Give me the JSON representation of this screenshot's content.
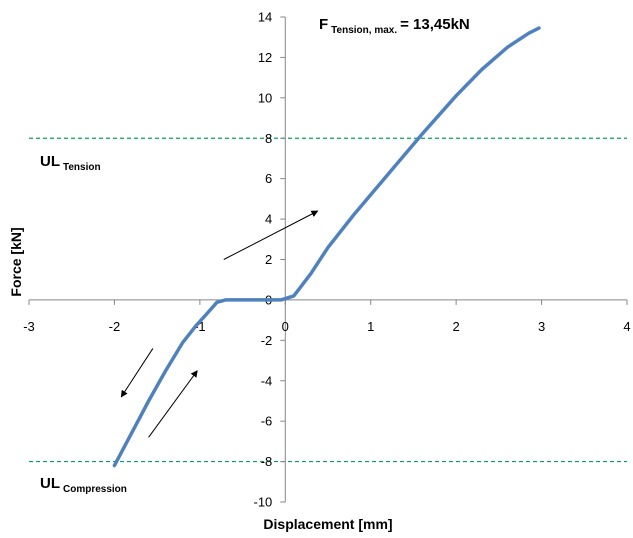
{
  "chart_data": {
    "type": "line",
    "title": "",
    "xlabel": "Displacement [mm]",
    "ylabel": "Force [kN]",
    "xlim": [
      -3,
      4
    ],
    "ylim": [
      -10,
      14
    ],
    "x_ticks": [
      -3,
      -2,
      -1,
      0,
      1,
      2,
      3,
      4
    ],
    "y_ticks": [
      -10,
      -8,
      -6,
      -4,
      -2,
      0,
      2,
      4,
      6,
      8,
      10,
      12,
      14
    ],
    "grid": false,
    "line_color": "#4f81bd",
    "threshold_color": "#00a651",
    "thresholds": [
      {
        "y": 8,
        "label": "UL",
        "sub": "Tension"
      },
      {
        "y": -8,
        "label": "UL",
        "sub": "Compression"
      }
    ],
    "max_annotation": {
      "prefix": "F",
      "sub": "Tension, max.",
      "suffix": "= 13,45kN"
    },
    "series": [
      {
        "name": "",
        "x": [
          -2.0,
          -1.8,
          -1.6,
          -1.4,
          -1.2,
          -1.05,
          -0.9,
          -0.8,
          -0.7,
          -0.5,
          -0.3,
          -0.15,
          -0.05,
          0.1,
          0.3,
          0.5,
          0.8,
          1.0,
          1.3,
          1.6,
          2.0,
          2.3,
          2.6,
          2.85,
          2.97
        ],
        "y": [
          -8.2,
          -6.6,
          -5.0,
          -3.5,
          -2.1,
          -1.3,
          -0.6,
          -0.12,
          0.0,
          0.0,
          0.0,
          0.0,
          0.0,
          0.2,
          1.3,
          2.6,
          4.2,
          5.2,
          6.7,
          8.2,
          10.1,
          11.4,
          12.5,
          13.2,
          13.45
        ]
      }
    ],
    "arrows": [
      {
        "from": [
          -0.72,
          2.0
        ],
        "to": [
          0.38,
          4.4
        ]
      },
      {
        "from": [
          -1.6,
          -6.8
        ],
        "to": [
          -1.03,
          -3.5
        ]
      },
      {
        "from": [
          -1.55,
          -2.4
        ],
        "to": [
          -1.92,
          -4.8
        ]
      }
    ]
  }
}
